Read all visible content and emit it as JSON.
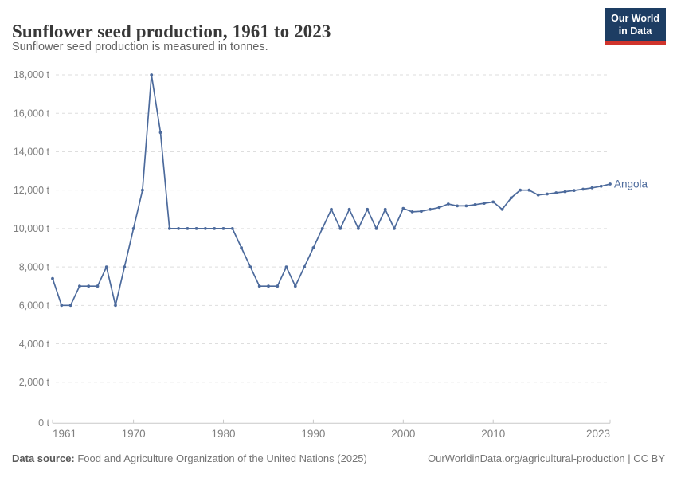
{
  "header": {
    "title": "Sunflower seed production, 1961 to 2023",
    "subtitle": "Sunflower seed production is measured in tonnes.",
    "logo_line1": "Our World",
    "logo_line2": "in Data"
  },
  "footer": {
    "source_label": "Data source:",
    "source_text": " Food and Agriculture Organization of the United Nations (2025)",
    "credit": "OurWorldinData.org/agricultural-production | CC BY"
  },
  "colors": {
    "series_blue": "#4C6A9C",
    "grid": "#dedede",
    "axis": "#c9c9c9",
    "tick_text": "#808080",
    "logo_bg": "#1d3d63",
    "logo_stripe": "#d0342c"
  },
  "chart_data": {
    "type": "line",
    "title": "Sunflower seed production, 1961 to 2023",
    "unit": "tonnes",
    "grid": "horizontal-dashed",
    "legend_position": "end-of-line-label",
    "entity_label": "Angola",
    "ylim": [
      0,
      18000
    ],
    "xlim": [
      1961,
      2023
    ],
    "y_ticks": [
      {
        "value": 0,
        "label": "0 t"
      },
      {
        "value": 2000,
        "label": "2,000 t"
      },
      {
        "value": 4000,
        "label": "4,000 t"
      },
      {
        "value": 6000,
        "label": "6,000 t"
      },
      {
        "value": 8000,
        "label": "8,000 t"
      },
      {
        "value": 10000,
        "label": "10,000 t"
      },
      {
        "value": 12000,
        "label": "12,000 t"
      },
      {
        "value": 14000,
        "label": "14,000 t"
      },
      {
        "value": 16000,
        "label": "16,000 t"
      },
      {
        "value": 18000,
        "label": "18,000 t"
      }
    ],
    "x_ticks": [
      {
        "value": 1961,
        "label": "1961",
        "align": "start"
      },
      {
        "value": 1970,
        "label": "1970",
        "align": "middle"
      },
      {
        "value": 1980,
        "label": "1980",
        "align": "middle"
      },
      {
        "value": 1990,
        "label": "1990",
        "align": "middle"
      },
      {
        "value": 2000,
        "label": "2000",
        "align": "middle"
      },
      {
        "value": 2010,
        "label": "2010",
        "align": "middle"
      },
      {
        "value": 2023,
        "label": "2023",
        "align": "end"
      }
    ],
    "series": [
      {
        "name": "Angola",
        "color": "#4C6A9C",
        "x": [
          1961,
          1962,
          1963,
          1964,
          1965,
          1966,
          1967,
          1968,
          1969,
          1970,
          1971,
          1972,
          1973,
          1974,
          1975,
          1976,
          1977,
          1978,
          1979,
          1980,
          1981,
          1982,
          1983,
          1984,
          1985,
          1986,
          1987,
          1988,
          1989,
          1990,
          1991,
          1992,
          1993,
          1994,
          1995,
          1996,
          1997,
          1998,
          1999,
          2000,
          2001,
          2002,
          2003,
          2004,
          2005,
          2006,
          2007,
          2008,
          2009,
          2010,
          2011,
          2012,
          2013,
          2014,
          2015,
          2016,
          2017,
          2018,
          2019,
          2020,
          2021,
          2022,
          2023
        ],
        "values": [
          7400,
          6000,
          6000,
          7000,
          7000,
          7000,
          8000,
          6000,
          8000,
          10000,
          12000,
          18000,
          15000,
          10000,
          10000,
          10000,
          10000,
          10000,
          10000,
          10000,
          10000,
          9000,
          8000,
          7000,
          7000,
          7000,
          8000,
          7000,
          8000,
          9000,
          10000,
          11000,
          10000,
          11000,
          10000,
          11000,
          10000,
          11000,
          10000,
          11050,
          10870,
          10900,
          11000,
          11100,
          11280,
          11180,
          11180,
          11250,
          11320,
          11390,
          11000,
          11600,
          12000,
          12000,
          11750,
          11800,
          11860,
          11920,
          11980,
          12050,
          12120,
          12200,
          12320
        ]
      }
    ]
  }
}
